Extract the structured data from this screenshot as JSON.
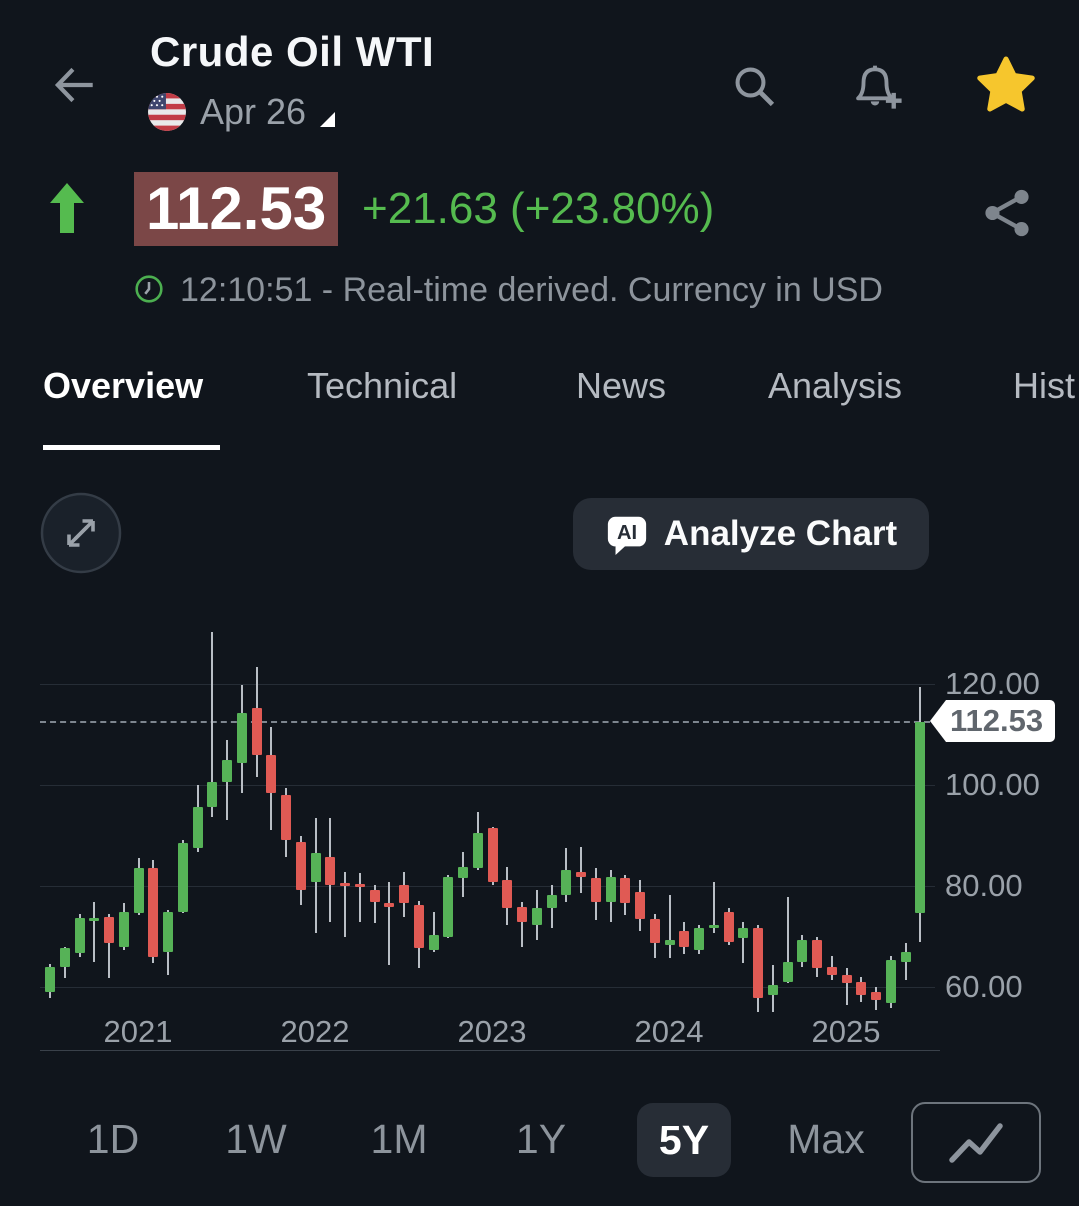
{
  "colors": {
    "background": "#10151c",
    "accent_green": "#55bb4f",
    "candle_up": "#56b257",
    "candle_down": "#e05a54",
    "price_flash_bg": "#7b4747",
    "star_gold": "#f6c62d",
    "muted_text": "#8d949c",
    "panel": "#272d36"
  },
  "icons": {
    "back": "back-arrow-icon",
    "flag": "us-flag-icon",
    "date_expander": "corner-triangle-icon",
    "search": "search-icon",
    "alerts": "bell-add-icon",
    "favorite": "star-icon",
    "direction": "up-arrow-icon",
    "share": "share-icon",
    "clock": "clock-icon",
    "expand": "expand-arrows-icon",
    "analyze": "ai-chat-bubble-icon",
    "chart_style": "line-chart-icon"
  },
  "header": {
    "title": "Crude Oil WTI",
    "date": "Apr 26"
  },
  "price": {
    "value": "112.53",
    "change": "+21.63",
    "change_pct": "(+23.80%)",
    "info": "12:10:51 - Real-time derived. Currency in USD"
  },
  "tabs": {
    "items": [
      {
        "label": "Overview",
        "active": true
      },
      {
        "label": "Technical",
        "active": false
      },
      {
        "label": "News",
        "active": false
      },
      {
        "label": "Analysis",
        "active": false
      },
      {
        "label": "Hist",
        "active": false
      }
    ]
  },
  "analyze": {
    "label": "Analyze Chart"
  },
  "chart_data": {
    "type": "candlestick",
    "instrument": "Crude Oil WTI",
    "interval": "monthly",
    "range_selected": "5Y",
    "currency": "USD",
    "last_price": 112.53,
    "last_price_label": "112.53",
    "y_ticks": [
      120,
      100,
      80,
      60
    ],
    "y_tick_labels": [
      "120.00",
      "100.00",
      "80.00",
      "60.00"
    ],
    "ylim_visible": [
      54,
      131
    ],
    "x_year_labels": [
      {
        "label": "2021",
        "candle_index": 6
      },
      {
        "label": "2022",
        "candle_index": 18
      },
      {
        "label": "2023",
        "candle_index": 30
      },
      {
        "label": "2024",
        "candle_index": 42
      },
      {
        "label": "2025",
        "candle_index": 54
      }
    ],
    "candles_ohlc": [
      [
        59.0,
        64.5,
        57.8,
        64.0
      ],
      [
        64.0,
        68.0,
        61.8,
        67.7
      ],
      [
        66.7,
        74.5,
        66.0,
        73.7
      ],
      [
        73.5,
        76.8,
        65.0,
        73.7
      ],
      [
        73.9,
        74.5,
        61.8,
        68.7
      ],
      [
        67.9,
        76.6,
        67.3,
        74.9
      ],
      [
        74.7,
        85.6,
        74.3,
        83.6
      ],
      [
        83.6,
        85.2,
        64.8,
        66.0
      ],
      [
        66.9,
        75.2,
        62.4,
        74.9
      ],
      [
        74.9,
        89.1,
        74.7,
        88.5
      ],
      [
        87.5,
        100.0,
        86.7,
        95.6
      ],
      [
        95.6,
        130.3,
        93.7,
        100.6
      ],
      [
        100.6,
        108.9,
        93.1,
        105.0
      ],
      [
        104.4,
        119.8,
        98.4,
        114.3
      ],
      [
        115.2,
        123.4,
        101.6,
        105.9
      ],
      [
        105.9,
        111.5,
        91.1,
        98.4
      ],
      [
        98.0,
        99.5,
        85.7,
        89.1
      ],
      [
        88.7,
        90.0,
        76.2,
        79.2
      ],
      [
        80.8,
        93.5,
        70.7,
        86.5
      ],
      [
        85.7,
        93.5,
        72.9,
        80.2
      ],
      [
        80.5,
        82.8,
        69.9,
        80.0
      ],
      [
        80.4,
        82.6,
        72.9,
        79.9
      ],
      [
        79.2,
        80.2,
        72.7,
        76.8
      ],
      [
        76.6,
        80.8,
        64.4,
        75.8
      ],
      [
        80.2,
        82.8,
        73.9,
        76.6
      ],
      [
        76.2,
        77.0,
        63.8,
        67.7
      ],
      [
        67.3,
        74.9,
        66.9,
        70.3
      ],
      [
        69.9,
        82.2,
        69.7,
        81.8
      ],
      [
        81.6,
        86.7,
        77.8,
        83.8
      ],
      [
        83.6,
        94.7,
        83.2,
        90.5
      ],
      [
        91.5,
        91.7,
        80.2,
        80.8
      ],
      [
        81.2,
        83.8,
        72.3,
        75.6
      ],
      [
        75.8,
        76.8,
        67.9,
        72.9
      ],
      [
        72.3,
        79.2,
        69.3,
        75.6
      ],
      [
        75.6,
        80.2,
        71.7,
        78.2
      ],
      [
        78.2,
        87.5,
        76.8,
        83.2
      ],
      [
        82.8,
        87.7,
        78.6,
        81.8
      ],
      [
        81.6,
        83.6,
        73.3,
        76.8
      ],
      [
        76.8,
        83.2,
        72.9,
        81.8
      ],
      [
        81.6,
        82.2,
        74.3,
        76.6
      ],
      [
        78.8,
        81.2,
        71.0,
        73.5
      ],
      [
        73.5,
        74.5,
        65.8,
        68.7
      ],
      [
        68.3,
        78.2,
        65.8,
        69.3
      ],
      [
        71.0,
        72.9,
        66.6,
        68.0
      ],
      [
        67.3,
        72.3,
        66.6,
        71.7
      ],
      [
        71.8,
        80.8,
        70.7,
        72.3
      ],
      [
        74.9,
        75.6,
        68.3,
        68.9
      ],
      [
        69.7,
        72.9,
        64.8,
        71.7
      ],
      [
        71.7,
        72.3,
        55.1,
        57.8
      ],
      [
        58.4,
        64.4,
        55.1,
        60.4
      ],
      [
        61.0,
        77.8,
        60.8,
        65.0
      ],
      [
        65.0,
        70.3,
        64.0,
        69.3
      ],
      [
        69.3,
        69.9,
        62.0,
        63.8
      ],
      [
        64.0,
        66.2,
        61.4,
        62.4
      ],
      [
        62.4,
        63.8,
        56.5,
        60.8
      ],
      [
        61.0,
        62.0,
        57.0,
        58.4
      ],
      [
        59.0,
        60.0,
        55.5,
        57.4
      ],
      [
        56.8,
        66.2,
        55.9,
        65.4
      ],
      [
        65.0,
        68.7,
        61.4,
        66.9
      ],
      [
        74.7,
        119.5,
        68.9,
        112.53
      ]
    ]
  },
  "ranges": {
    "items": [
      {
        "label": "1D",
        "active": false
      },
      {
        "label": "1W",
        "active": false
      },
      {
        "label": "1M",
        "active": false
      },
      {
        "label": "1Y",
        "active": false
      },
      {
        "label": "5Y",
        "active": true
      },
      {
        "label": "Max",
        "active": false
      }
    ]
  }
}
